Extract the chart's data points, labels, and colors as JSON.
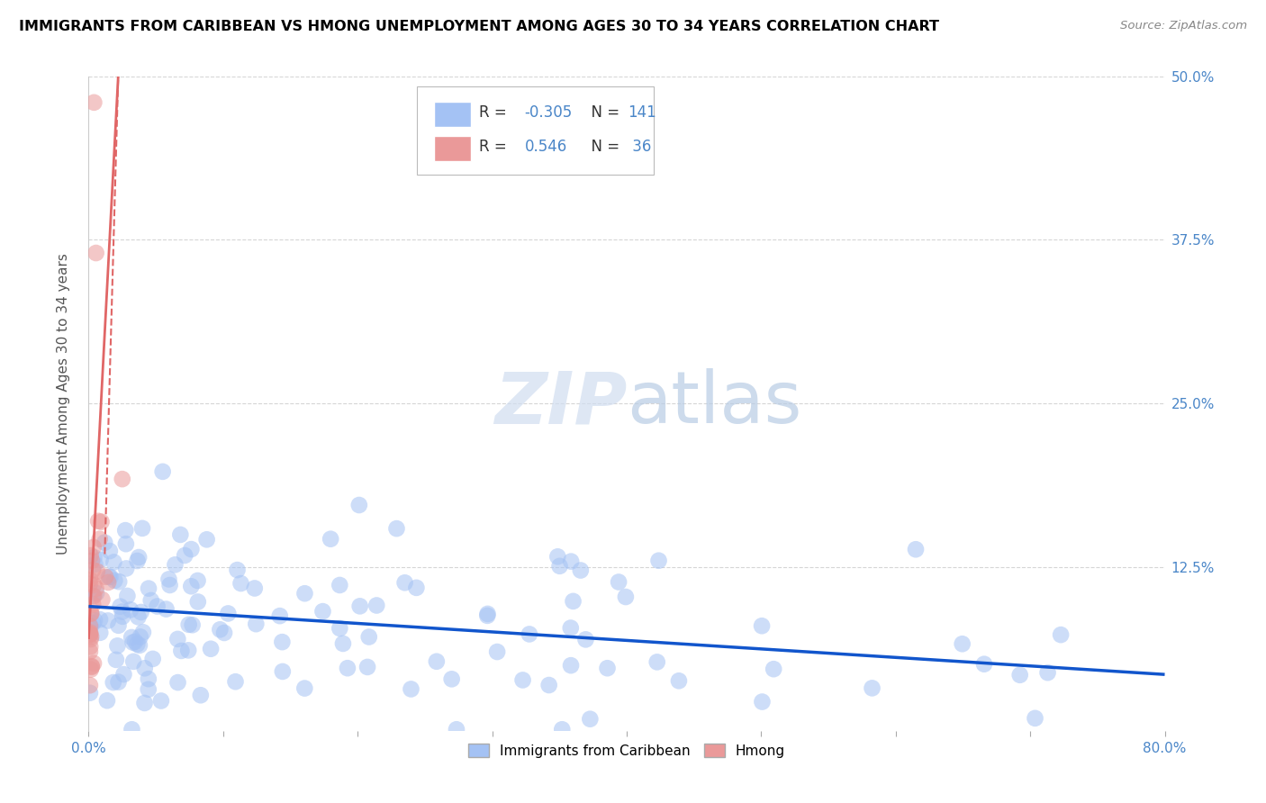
{
  "title": "IMMIGRANTS FROM CARIBBEAN VS HMONG UNEMPLOYMENT AMONG AGES 30 TO 34 YEARS CORRELATION CHART",
  "source": "Source: ZipAtlas.com",
  "ylabel": "Unemployment Among Ages 30 to 34 years",
  "xlim": [
    0.0,
    0.8
  ],
  "ylim": [
    0.0,
    0.5
  ],
  "xtick_positions": [
    0.0,
    0.1,
    0.2,
    0.3,
    0.4,
    0.5,
    0.6,
    0.7,
    0.8
  ],
  "xticklabels": [
    "0.0%",
    "",
    "",
    "",
    "",
    "",
    "",
    "",
    "80.0%"
  ],
  "ytick_positions": [
    0.0,
    0.125,
    0.25,
    0.375,
    0.5
  ],
  "ytick_labels": [
    "",
    "12.5%",
    "25.0%",
    "37.5%",
    "50.0%"
  ],
  "blue_color": "#a4c2f4",
  "pink_color": "#ea9999",
  "blue_line_color": "#1155cc",
  "pink_line_color": "#e06666",
  "legend_R_blue": "-0.305",
  "legend_N_blue": "141",
  "legend_R_pink": "0.546",
  "legend_N_pink": "36",
  "legend_text_color": "#4a86c8",
  "legend_label_color": "#333333",
  "watermark_color": "#d0ddf0",
  "background_color": "#ffffff",
  "grid_color": "#cccccc",
  "title_color": "#000000",
  "axis_label_color": "#4a86c8",
  "blue_trend_x0": 0.0,
  "blue_trend_y0": 0.095,
  "blue_trend_x1": 0.8,
  "blue_trend_y1": 0.043,
  "pink_trend_x0": 0.0,
  "pink_trend_y0": 0.07,
  "pink_trend_x1": 0.022,
  "pink_trend_y1": 0.5
}
